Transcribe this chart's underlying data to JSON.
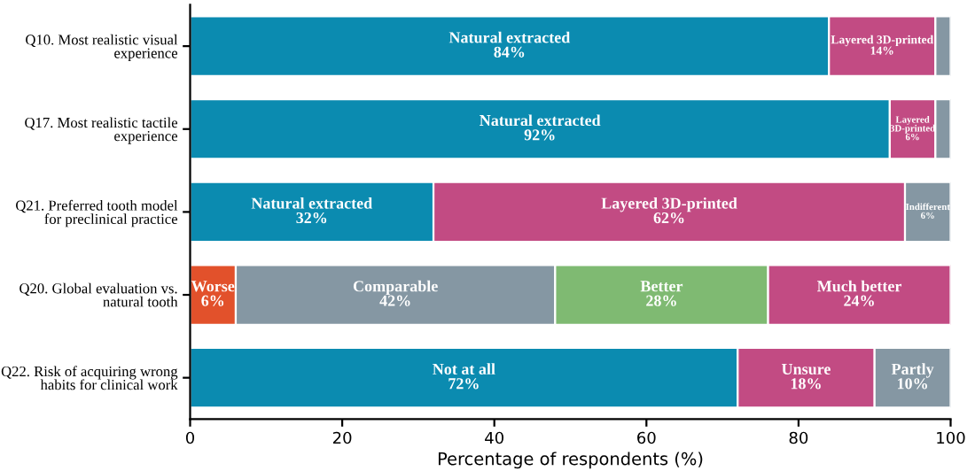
{
  "chart_data": {
    "type": "bar",
    "orientation": "horizontal",
    "stacked": true,
    "categories": [
      "Q10. Most realistic visual experience",
      "Q17. Most realistic tactile experience",
      "Q21. Preferred tooth model for preclinical practice",
      "Q20. Global evaluation vs. natural tooth",
      "Q22. Risk of acquiring wrong habits for clinical work"
    ],
    "xlabel": "Percentage of respondents (%)",
    "xlim": [
      0,
      100
    ],
    "xticks": [
      0,
      20,
      40,
      60,
      80,
      100
    ],
    "grid": false,
    "legend": false,
    "series": [
      {
        "colors": [
          "#0b8bb0",
          "#0b8bb0",
          "#0b8bb0",
          "#e2512b",
          "#0b8bb0"
        ],
        "values": [
          84,
          92,
          32,
          6,
          72
        ],
        "value_labels": [
          "Natural extracted\n84%",
          "Natural extracted\n92%",
          "Natural extracted\n32%",
          "Worse\n6%",
          "Not at all\n72%"
        ]
      },
      {
        "colors": [
          "#c24b83",
          "#c24b83",
          "#c24b83",
          "#8597a3",
          "#c24b83"
        ],
        "values": [
          14,
          6,
          62,
          42,
          18
        ],
        "value_labels": [
          "Layered 3D-printed\n14%",
          "Layered\n3D-printed\n6%",
          "Layered 3D-printed\n62%",
          "Comparable\n42%",
          "Unsure\n18%"
        ]
      },
      {
        "colors": [
          "#8597a3",
          "#8597a3",
          "#8597a3",
          "#7fba72",
          "#8597a3"
        ],
        "values": [
          2,
          2,
          6,
          28,
          10
        ],
        "value_labels": [
          null,
          null,
          "Indifferent\n6%",
          "Better\n28%",
          "Partly\n10%"
        ]
      },
      {
        "colors": [
          null,
          null,
          null,
          "#c24b83",
          null
        ],
        "values": [
          null,
          null,
          null,
          24,
          null
        ],
        "value_labels": [
          null,
          null,
          null,
          "Much better\n24%",
          null
        ]
      }
    ]
  }
}
